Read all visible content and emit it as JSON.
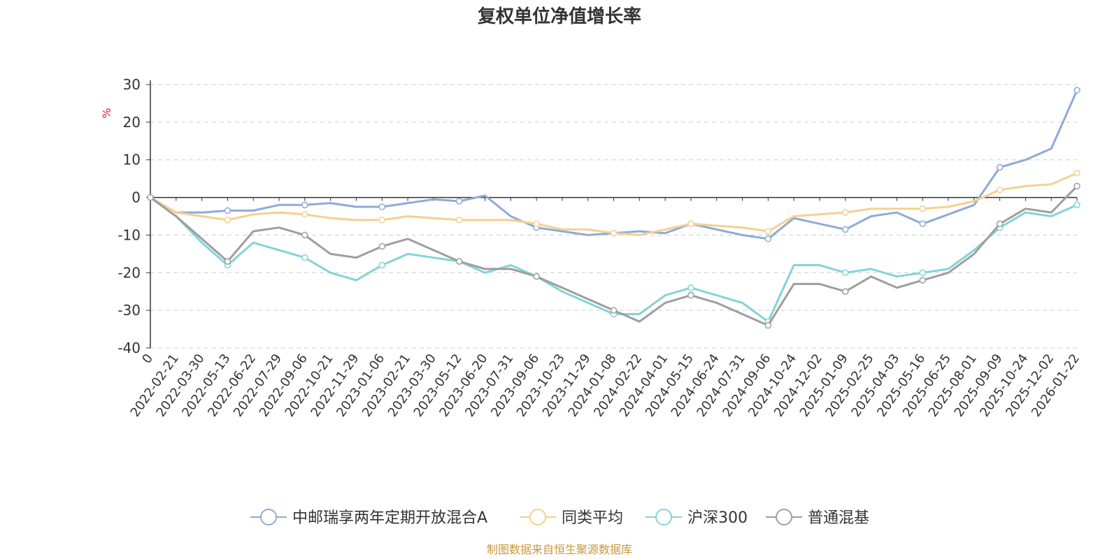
{
  "chart_data": {
    "type": "line",
    "title": "复权单位净值增长率",
    "ylabel": "%",
    "ylim": [
      -40,
      30
    ],
    "yticks": [
      30,
      20,
      10,
      0,
      -10,
      -20,
      -30,
      -40
    ],
    "x": [
      "0",
      "2022-02-21",
      "2022-03-30",
      "2022-05-13",
      "2022-06-22",
      "2022-07-29",
      "2022-09-06",
      "2022-10-21",
      "2022-11-29",
      "2023-01-06",
      "2023-02-21",
      "2023-03-30",
      "2023-05-12",
      "2023-06-20",
      "2023-07-31",
      "2023-09-06",
      "2023-10-23",
      "2023-11-29",
      "2024-01-08",
      "2024-02-22",
      "2024-04-01",
      "2024-05-15",
      "2024-06-24",
      "2024-07-31",
      "2024-09-06",
      "2024-10-24",
      "2024-12-02",
      "2025-01-09",
      "2025-02-25",
      "2025-04-03",
      "2025-05-16",
      "2025-06-25",
      "2025-08-01",
      "2025-09-09",
      "2025-10-24",
      "2025-12-02",
      "2026-01-22"
    ],
    "grid": true,
    "legend_position": "bottom",
    "series": [
      {
        "name": "中邮瑞享两年定期开放混合A",
        "color": "#8eaad8",
        "values": [
          0,
          -4,
          -4,
          -3.5,
          -3.5,
          -2,
          -2,
          -1.5,
          -2.5,
          -2.5,
          -1.5,
          -0.5,
          -1,
          0.5,
          -5,
          -8,
          -9,
          -10,
          -9.5,
          -9,
          -9.5,
          -7,
          -8.5,
          -10,
          -11,
          -5.5,
          -7,
          -8.5,
          -5,
          -4,
          -7,
          -4.5,
          -2,
          8,
          10,
          13,
          28.5
        ]
      },
      {
        "name": "同类平均",
        "color": "#f5d08e",
        "values": [
          0,
          -4,
          -5,
          -6,
          -4.5,
          -4,
          -4.5,
          -5.5,
          -6,
          -6,
          -5,
          -5.5,
          -6,
          -6,
          -6,
          -7,
          -8.5,
          -8.5,
          -9.5,
          -10,
          -8.5,
          -7,
          -7.5,
          -8,
          -9,
          -5,
          -4.5,
          -4,
          -3,
          -3,
          -3,
          -2.5,
          -1,
          2,
          3,
          3.5,
          6.5
        ]
      },
      {
        "name": "沪深300",
        "color": "#82d4d8",
        "values": [
          0,
          -5,
          -12,
          -18,
          -12,
          -14,
          -16,
          -20,
          -22,
          -18,
          -15,
          -16,
          -17,
          -20,
          -18,
          -21,
          -25,
          -28,
          -31,
          -31,
          -26,
          -24,
          -26,
          -28,
          -33,
          -18,
          -18,
          -20,
          -19,
          -21,
          -20,
          -19,
          -14,
          -8,
          -4,
          -5,
          -2
        ]
      },
      {
        "name": "普通混基",
        "color": "#9e9e9e",
        "values": [
          0,
          -5,
          -11,
          -17,
          -9,
          -8,
          -10,
          -15,
          -16,
          -13,
          -11,
          -14,
          -17,
          -19,
          -19,
          -21,
          -24,
          -27,
          -30,
          -33,
          -28,
          -26,
          -28,
          -31,
          -34,
          -23,
          -23,
          -25,
          -21,
          -24,
          -22,
          -20,
          -15,
          -7,
          -3,
          -4,
          3
        ]
      }
    ]
  },
  "legend": {
    "items": [
      {
        "label": "中邮瑞享两年定期开放混合A"
      },
      {
        "label": "同类平均"
      },
      {
        "label": "沪深300"
      },
      {
        "label": "普通混基"
      }
    ]
  },
  "source": "制图数据来自恒生聚源数据库"
}
